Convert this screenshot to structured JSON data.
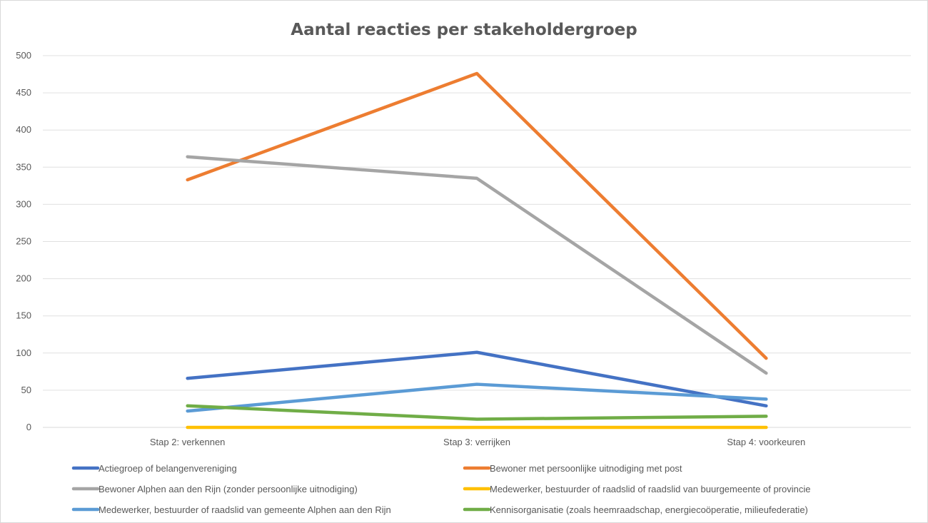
{
  "chart_data": {
    "type": "line",
    "title": "Aantal reacties per stakeholdergroep",
    "xlabel": "",
    "ylabel": "",
    "categories": [
      "Stap 2: verkennen",
      "Stap 3: verrijken",
      "Stap 4: voorkeuren"
    ],
    "ylim": [
      0,
      500
    ],
    "yticks": [
      0,
      50,
      100,
      150,
      200,
      250,
      300,
      350,
      400,
      450,
      500
    ],
    "grid": true,
    "legend_position": "bottom",
    "series": [
      {
        "name": "Actiegroep of belangenvereniging",
        "color": "#4472c4",
        "values": [
          66,
          101,
          29
        ]
      },
      {
        "name": "Bewoner met persoonlijke uitnodiging met post",
        "color": "#ed7d31",
        "values": [
          333,
          476,
          93
        ]
      },
      {
        "name": "Bewoner Alphen aan den Rijn (zonder persoonlijke uitnodiging)",
        "color": "#a5a5a5",
        "values": [
          364,
          335,
          73
        ]
      },
      {
        "name": "Medewerker, bestuurder of raadslid of raadslid van buurgemeente of provincie",
        "color": "#ffc000",
        "values": [
          0,
          0,
          0
        ]
      },
      {
        "name": "Medewerker, bestuurder of raadslid van gemeente Alphen aan den Rijn",
        "color": "#5b9bd5",
        "values": [
          22,
          58,
          38
        ]
      },
      {
        "name": "Kennisorganisatie (zoals heemraadschap, energiecoöperatie, milieufederatie)",
        "color": "#70ad47",
        "values": [
          29,
          11,
          15
        ]
      }
    ]
  }
}
